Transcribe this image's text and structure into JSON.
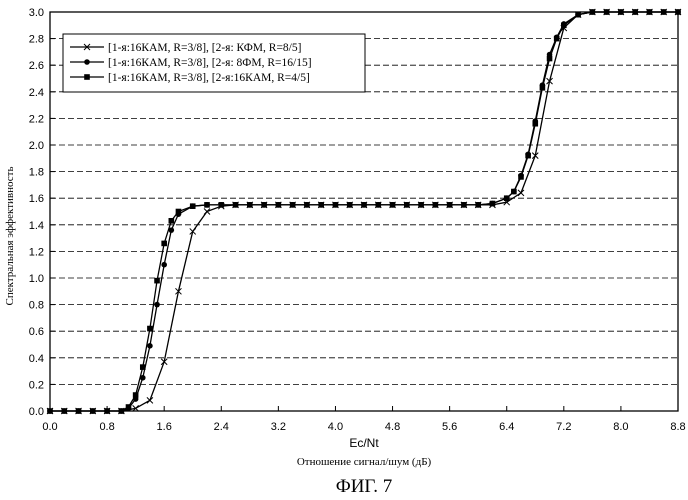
{
  "chart_data": {
    "type": "line",
    "title": "",
    "xlabel": "Ec/Nt",
    "xlabel_sub": "Отношение сигнал/шум (дБ)",
    "ylabel": "Спектральная эффективность",
    "caption": "ФИГ. 7",
    "xlim": [
      0.0,
      8.8
    ],
    "ylim": [
      0.0,
      3.0
    ],
    "xticks": [
      "0.0",
      "0.8",
      "1.6",
      "2.4",
      "3.2",
      "4.0",
      "4.8",
      "5.6",
      "6.4",
      "7.2",
      "8.0",
      "8.8"
    ],
    "yticks": [
      "0.0",
      "0.2",
      "0.4",
      "0.6",
      "0.8",
      "1.0",
      "1.2",
      "1.4",
      "1.6",
      "1.8",
      "2.0",
      "2.2",
      "2.4",
      "2.6",
      "2.8",
      "3.0"
    ],
    "grid": "horizontal-dashed",
    "legend_position": "top-left",
    "series": [
      {
        "name": "[1-я:16КАМ, R=3/8],  [2-я: КФМ, R=8/5]",
        "marker": "x",
        "x": [
          0.0,
          0.2,
          0.4,
          0.6,
          0.8,
          1.0,
          1.2,
          1.4,
          1.6,
          1.8,
          2.0,
          2.2,
          2.4,
          2.6,
          2.8,
          3.0,
          3.2,
          3.4,
          3.6,
          3.8,
          4.0,
          4.2,
          4.4,
          4.6,
          4.8,
          5.0,
          5.2,
          5.4,
          5.6,
          5.8,
          6.0,
          6.2,
          6.4,
          6.6,
          6.8,
          7.0,
          7.2,
          7.4,
          7.6,
          7.8,
          8.0,
          8.2,
          8.4,
          8.6,
          8.8
        ],
        "values": [
          0.0,
          0.0,
          0.0,
          0.0,
          0.0,
          0.0,
          0.02,
          0.08,
          0.37,
          0.9,
          1.35,
          1.5,
          1.54,
          1.55,
          1.55,
          1.55,
          1.55,
          1.55,
          1.55,
          1.55,
          1.55,
          1.55,
          1.55,
          1.55,
          1.55,
          1.55,
          1.55,
          1.55,
          1.55,
          1.55,
          1.55,
          1.55,
          1.57,
          1.64,
          1.92,
          2.48,
          2.88,
          2.98,
          3.0,
          3.0,
          3.0,
          3.0,
          3.0,
          3.0,
          3.0
        ]
      },
      {
        "name": "[1-я:16КАМ, R=3/8],  [2-я: 8ФМ, R=16/15]",
        "marker": "circle",
        "x": [
          0.0,
          0.2,
          0.4,
          0.6,
          0.8,
          1.0,
          1.1,
          1.2,
          1.3,
          1.4,
          1.5,
          1.6,
          1.7,
          1.8,
          2.0,
          2.2,
          2.4,
          2.6,
          2.8,
          3.0,
          3.2,
          3.4,
          3.6,
          3.8,
          4.0,
          4.2,
          4.4,
          4.6,
          4.8,
          5.0,
          5.2,
          5.4,
          5.6,
          5.8,
          6.0,
          6.2,
          6.4,
          6.5,
          6.6,
          6.7,
          6.8,
          6.9,
          7.0,
          7.1,
          7.2,
          7.4,
          7.6,
          7.8,
          8.0,
          8.2,
          8.4,
          8.6,
          8.8
        ],
        "values": [
          0.0,
          0.0,
          0.0,
          0.0,
          0.0,
          0.0,
          0.02,
          0.09,
          0.25,
          0.49,
          0.8,
          1.1,
          1.36,
          1.48,
          1.54,
          1.55,
          1.55,
          1.55,
          1.55,
          1.55,
          1.55,
          1.55,
          1.55,
          1.55,
          1.55,
          1.55,
          1.55,
          1.55,
          1.55,
          1.55,
          1.55,
          1.55,
          1.55,
          1.55,
          1.55,
          1.56,
          1.6,
          1.65,
          1.77,
          1.93,
          2.18,
          2.45,
          2.68,
          2.81,
          2.91,
          2.98,
          3.0,
          3.0,
          3.0,
          3.0,
          3.0,
          3.0,
          3.0
        ]
      },
      {
        "name": "[1-я:16КАМ, R=3/8],  [2-я:16КАМ, R=4/5]",
        "marker": "square",
        "x": [
          0.0,
          0.2,
          0.4,
          0.6,
          0.8,
          1.0,
          1.1,
          1.2,
          1.3,
          1.4,
          1.5,
          1.6,
          1.7,
          1.8,
          2.0,
          2.2,
          2.4,
          2.6,
          2.8,
          3.0,
          3.2,
          3.4,
          3.6,
          3.8,
          4.0,
          4.2,
          4.4,
          4.6,
          4.8,
          5.0,
          5.2,
          5.4,
          5.6,
          5.8,
          6.0,
          6.2,
          6.4,
          6.5,
          6.6,
          6.7,
          6.8,
          6.9,
          7.0,
          7.1,
          7.2,
          7.4,
          7.6,
          7.8,
          8.0,
          8.2,
          8.4,
          8.6,
          8.8
        ],
        "values": [
          0.0,
          0.0,
          0.0,
          0.0,
          0.0,
          0.0,
          0.03,
          0.12,
          0.33,
          0.62,
          0.98,
          1.26,
          1.43,
          1.5,
          1.54,
          1.55,
          1.55,
          1.55,
          1.55,
          1.55,
          1.55,
          1.55,
          1.55,
          1.55,
          1.55,
          1.55,
          1.55,
          1.55,
          1.55,
          1.55,
          1.55,
          1.55,
          1.55,
          1.55,
          1.55,
          1.56,
          1.6,
          1.65,
          1.76,
          1.92,
          2.16,
          2.43,
          2.65,
          2.8,
          2.9,
          2.98,
          3.0,
          3.0,
          3.0,
          3.0,
          3.0,
          3.0,
          3.0
        ]
      }
    ]
  }
}
